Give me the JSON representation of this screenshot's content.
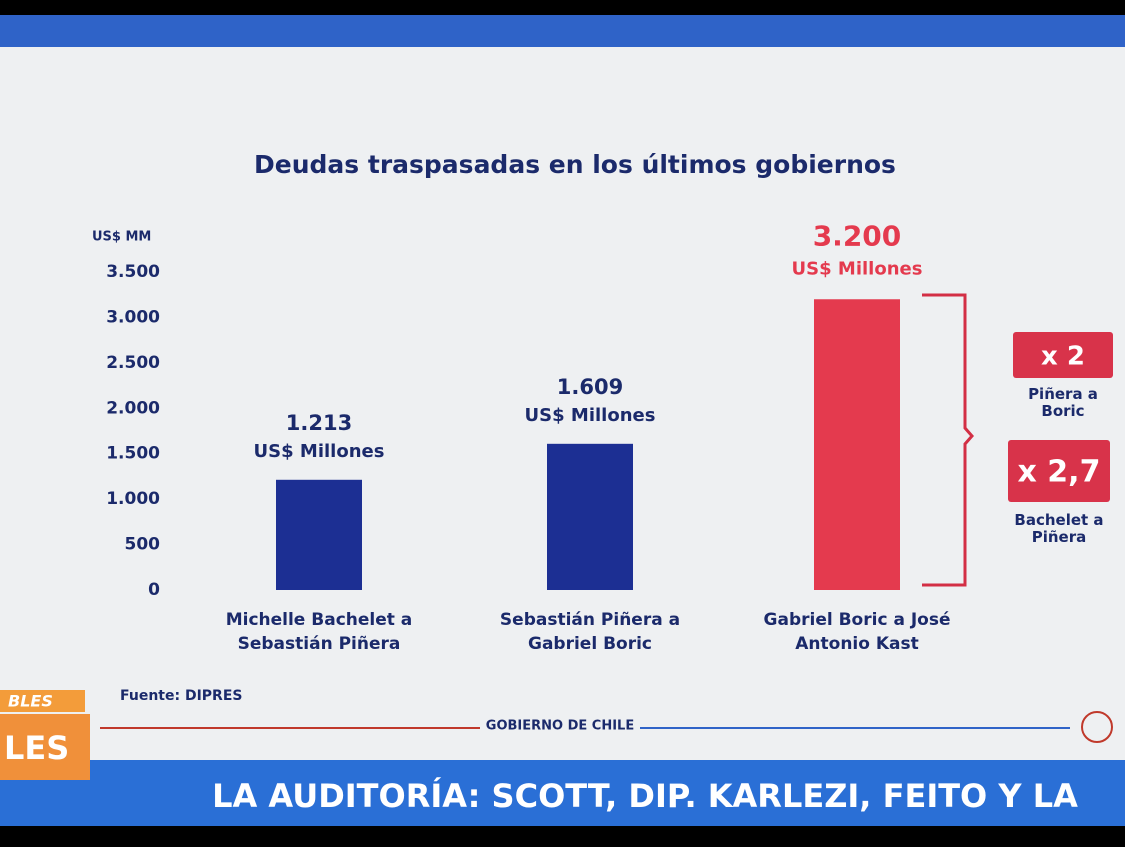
{
  "chart_data": {
    "type": "bar",
    "title": "Deudas traspasadas en los últimos gobiernos",
    "y_label": "US$ MM",
    "categories": [
      "Michelle Bachelet a Sebastián Piñera",
      "Sebastián Piñera a Gabriel Boric",
      "Gabriel Boric a José Antonio Kast"
    ],
    "values": [
      1213,
      1609,
      3200
    ],
    "value_labels": [
      "1.213",
      "1.609",
      "3.200"
    ],
    "value_unit": "US$ Millones",
    "colors": [
      "#1c2f93",
      "#1c2f93",
      "#e43a4e"
    ],
    "ylim": [
      0,
      3500
    ],
    "yticks": [
      0,
      500,
      {
        "value": 1000,
        "label": "1.000"
      },
      {
        "value": 1500,
        "label": "1.500"
      },
      {
        "value": 2000,
        "label": "2.000"
      },
      {
        "value": 2500,
        "label": "2.500"
      },
      {
        "value": 3000,
        "label": "3.000"
      },
      {
        "value": 3500,
        "label": "3.500"
      }
    ],
    "grid": false,
    "annotations": [
      {
        "factor": "x 2",
        "label": "Piñera a Boric"
      },
      {
        "factor": "x 2,7",
        "label": "Bachelet a Piñera"
      }
    ]
  },
  "source": "Fuente: DIPRES",
  "footer": "GOBIERNO DE CHILE",
  "side_tag_top": "BLES",
  "side_tag": "LES",
  "ticker": "LA AUDITORÍA: SCOTT, DIP. KARLEZI, FEITO Y LA"
}
